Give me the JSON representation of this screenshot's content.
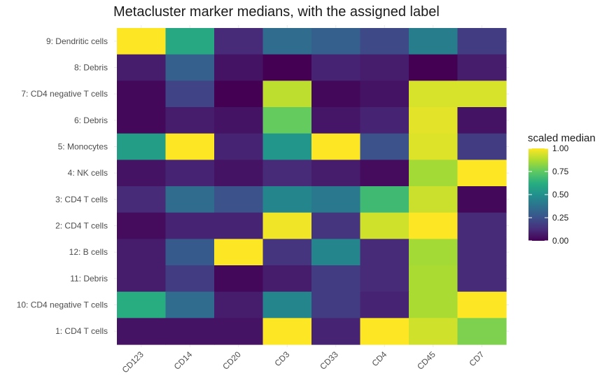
{
  "chart_data": {
    "type": "heatmap",
    "title": "Metacluster marker medians, with the assigned label",
    "xlabel": "",
    "ylabel": "",
    "x_categories": [
      "CD123",
      "CD14",
      "CD20",
      "CD3",
      "CD33",
      "CD4",
      "CD45",
      "CD7"
    ],
    "y_categories": [
      "9: Dendritic cells",
      "8: Debris",
      "7: CD4 negative T cells",
      "6: Debris",
      "5: Monocytes",
      "4: NK cells",
      "3: CD4 T cells",
      "2: CD4 T cells",
      "12: B cells",
      "11: Debris",
      "10: CD4 negative T cells",
      "1: CD4 T cells"
    ],
    "values": [
      [
        1.0,
        0.6,
        0.12,
        0.35,
        0.3,
        0.22,
        0.42,
        0.18
      ],
      [
        0.08,
        0.3,
        0.05,
        0.0,
        0.1,
        0.08,
        0.0,
        0.08
      ],
      [
        0.02,
        0.2,
        0.0,
        0.9,
        0.02,
        0.05,
        0.94,
        0.94
      ],
      [
        0.02,
        0.08,
        0.05,
        0.76,
        0.06,
        0.1,
        0.96,
        0.05
      ],
      [
        0.55,
        1.0,
        0.1,
        0.52,
        1.0,
        0.25,
        0.95,
        0.18
      ],
      [
        0.05,
        0.1,
        0.05,
        0.12,
        0.08,
        0.03,
        0.86,
        1.0
      ],
      [
        0.12,
        0.35,
        0.25,
        0.45,
        0.4,
        0.68,
        0.92,
        0.02
      ],
      [
        0.03,
        0.1,
        0.1,
        0.98,
        0.15,
        0.93,
        1.0,
        0.12
      ],
      [
        0.08,
        0.28,
        1.0,
        0.15,
        0.45,
        0.12,
        0.86,
        0.12
      ],
      [
        0.08,
        0.18,
        0.02,
        0.08,
        0.18,
        0.12,
        0.87,
        0.12
      ],
      [
        0.62,
        0.35,
        0.08,
        0.45,
        0.18,
        0.1,
        0.87,
        1.0
      ],
      [
        0.05,
        0.05,
        0.05,
        1.0,
        0.1,
        1.0,
        0.93,
        0.8
      ]
    ],
    "value_range": [
      0,
      1
    ],
    "colormap": "viridis",
    "legend": {
      "title": "scaled median",
      "ticks": [
        "1.00",
        "0.75",
        "0.50",
        "0.25",
        "0.00"
      ],
      "placement": "right"
    },
    "grid": true
  }
}
